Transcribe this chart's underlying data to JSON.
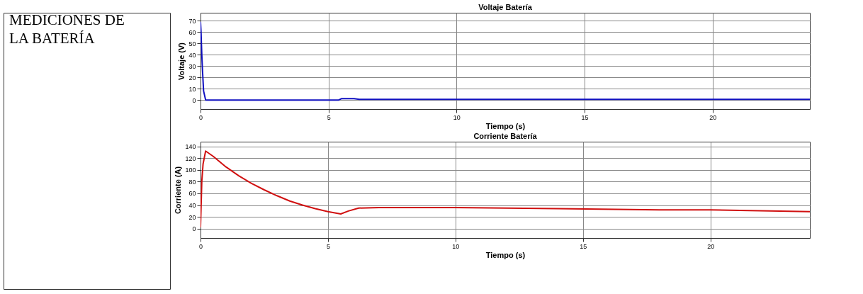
{
  "chart_data": [
    {
      "type": "other",
      "title": "MEDICIONES DE LA BATERÍA"
    },
    {
      "type": "line",
      "title": "Voltaje Batería",
      "xlabel": "Tiempo (s)",
      "ylabel": "Voltaje (V)",
      "xlim": [
        0,
        23.8
      ],
      "ylim": [
        -8,
        77
      ],
      "xticks": [
        0,
        5,
        10,
        15,
        20
      ],
      "yticks": [
        0,
        10,
        20,
        30,
        40,
        50,
        60,
        70
      ],
      "grid": true,
      "line_style": "solid",
      "x": [
        0,
        0.02,
        0.05,
        0.08,
        0.12,
        0.2,
        5.4,
        5.5,
        6.0,
        6.2,
        23.8
      ],
      "series": [
        {
          "color": "#1010c0",
          "values": [
            69,
            60,
            40,
            25,
            8,
            0,
            0,
            1.2,
            1.2,
            0.6,
            0.6
          ]
        }
      ]
    },
    {
      "type": "line",
      "title": "Corriente Batería",
      "xlabel": "Tiempo (s)",
      "ylabel": "Corriente (A)",
      "xlim": [
        0,
        23.9
      ],
      "ylim": [
        -16,
        148
      ],
      "xticks": [
        0,
        5,
        10,
        15,
        20
      ],
      "yticks": [
        0,
        20,
        40,
        60,
        80,
        100,
        120,
        140
      ],
      "grid": true,
      "line_style": "solid",
      "x": [
        0,
        0.05,
        0.1,
        0.2,
        0.5,
        1,
        1.5,
        2,
        2.5,
        3,
        3.5,
        4,
        4.5,
        5,
        5.5,
        5.8,
        6.2,
        7,
        10,
        14,
        18,
        20,
        23.9
      ],
      "series": [
        {
          "color": "#d01010",
          "values": [
            2,
            80,
            110,
            132,
            123,
            105,
            90,
            77,
            66,
            56,
            47,
            40,
            34,
            29,
            25,
            30,
            35,
            36,
            36,
            34,
            32,
            32,
            29
          ]
        }
      ]
    }
  ]
}
